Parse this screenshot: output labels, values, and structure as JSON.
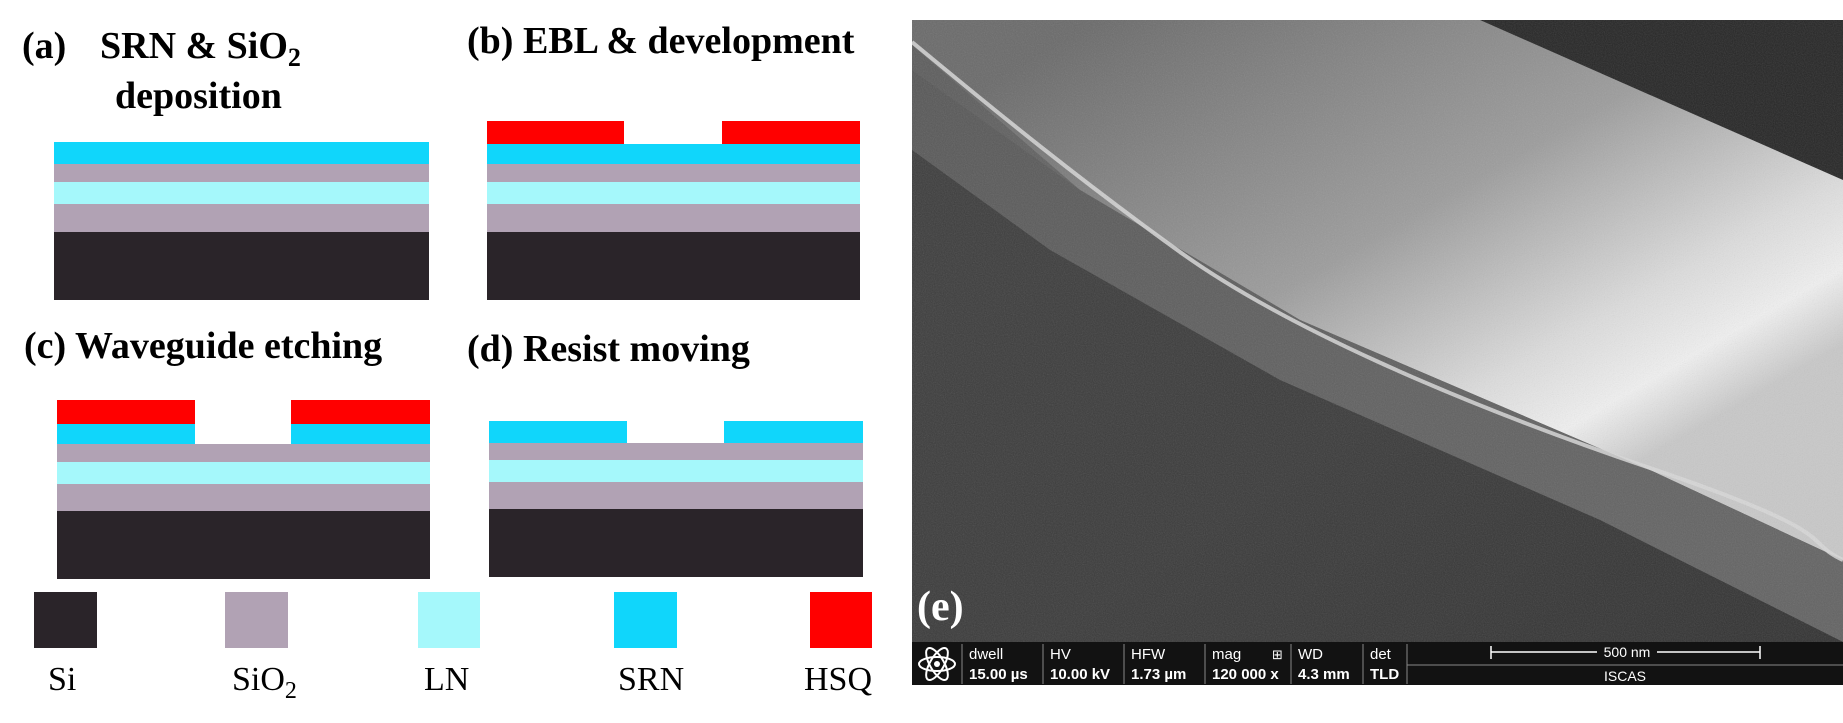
{
  "colors": {
    "si": "#2a2429",
    "sio2": "#b1a2b4",
    "ln": "#a5f8fb",
    "srn": "#10d6fb",
    "hsq": "#ff0000",
    "sem_bar": "#121212"
  },
  "panels": {
    "a": {
      "label": "(a)",
      "title_part1": "SRN & SiO",
      "title_sub": "2",
      "title_line2": "deposition"
    },
    "b": {
      "title": "(b) EBL & development"
    },
    "c": {
      "title": "(c) Waveguide etching"
    },
    "d": {
      "title": "(d) Resist moving"
    },
    "e": {
      "label": "(e)"
    }
  },
  "legend": [
    {
      "key": "si",
      "label": "Si",
      "sub": ""
    },
    {
      "key": "sio2",
      "label": "SiO",
      "sub": "2"
    },
    {
      "key": "ln",
      "label": "LN",
      "sub": ""
    },
    {
      "key": "srn",
      "label": "SRN",
      "sub": ""
    },
    {
      "key": "hsq",
      "label": "HSQ",
      "sub": ""
    }
  ],
  "sem": {
    "dwell_label": "dwell",
    "dwell_value": "15.00 µs",
    "hv_label": "HV",
    "hv_value": "10.00 kV",
    "hfw_label": "HFW",
    "hfw_value": "1.73 µm",
    "mag_label": "mag",
    "mag_icon": "⊞",
    "mag_value": "120 000 x",
    "wd_label": "WD",
    "wd_value": "4.3 mm",
    "det_label": "det",
    "det_value": "TLD",
    "scale_label": "500 nm",
    "institution": "ISCAS",
    "logo_icon": "atom-icon"
  }
}
